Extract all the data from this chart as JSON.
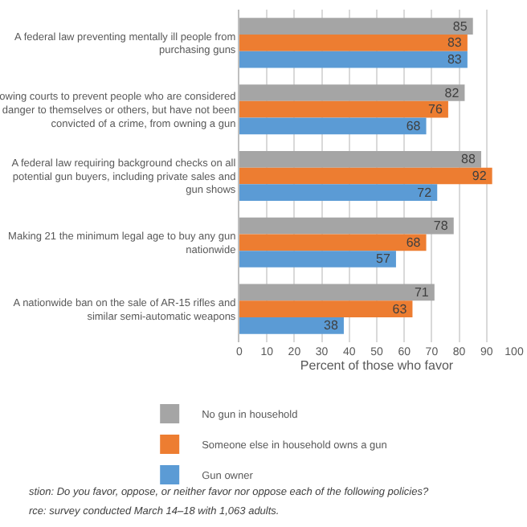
{
  "chart_data": {
    "type": "bar",
    "orientation": "horizontal",
    "xlabel": "Percent of those who favor",
    "categories": [
      "A federal law preventing mentally ill people from purchasing guns",
      "owing courts to prevent people who are considered danger to themselves or others, but have not been convicted of a crime, from owning a gun",
      "A federal law requiring background checks on all potential gun buyers, including private sales and gun shows",
      "Making 21 the minimum legal age to buy any gun nationwide",
      "A nationwide ban on the sale of AR-15 rifles and similar semi-automatic weapons"
    ],
    "series": [
      {
        "name": "No gun in household",
        "color": "#a5a5a5",
        "values": [
          85,
          82,
          88,
          78,
          71
        ]
      },
      {
        "name": "Someone else in household owns a gun",
        "color": "#ed7d31",
        "values": [
          83,
          76,
          92,
          68,
          63
        ]
      },
      {
        "name": "Gun owner",
        "color": "#5b9bd5",
        "values": [
          83,
          68,
          72,
          57,
          38
        ]
      }
    ],
    "xlim": [
      0,
      100
    ],
    "xticks": [
      0,
      10,
      20,
      30,
      40,
      50,
      60,
      70,
      80,
      90,
      100
    ],
    "grid": "x",
    "data_labels": true,
    "legend": "bottom",
    "annotations": [
      "stion: Do you favor, oppose, or neither favor nor oppose each of the following policies?",
      "rce: survey conducted March 14–18 with 1,063 adults."
    ]
  }
}
